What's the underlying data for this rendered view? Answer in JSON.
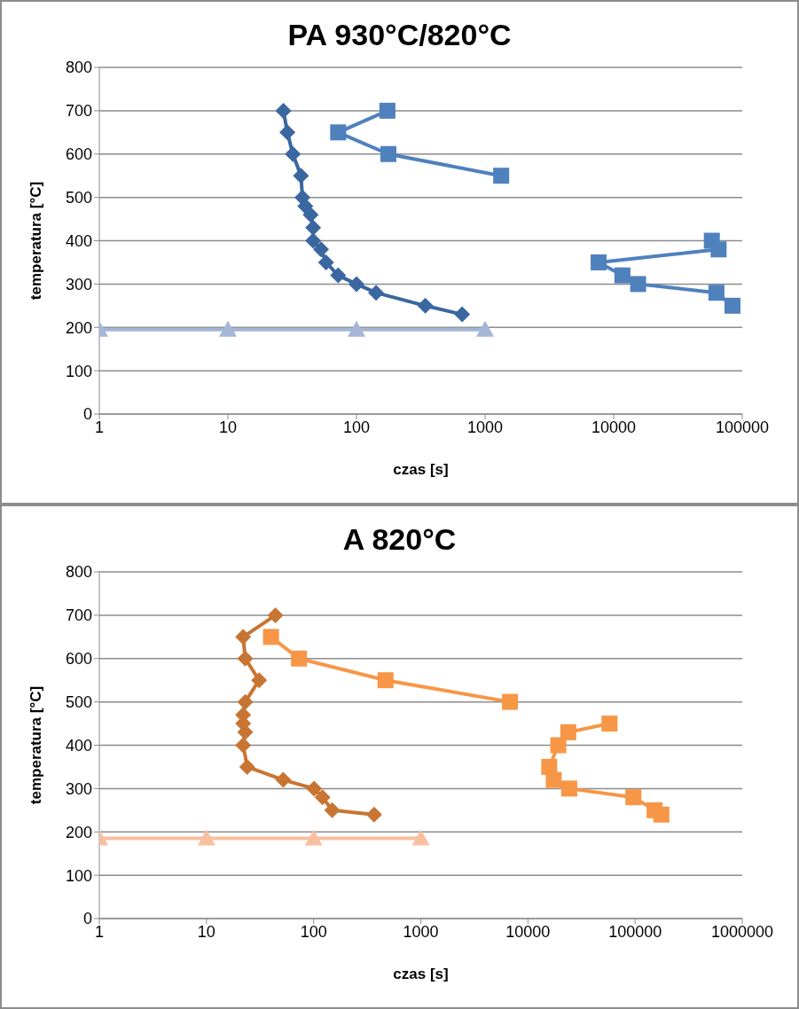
{
  "chart_data": [
    {
      "type": "line",
      "title": "PA 930°C/820°C",
      "xlabel": "czas [s]",
      "ylabel": "temperatura [°C]",
      "log": "x",
      "xlim": [
        1,
        100000
      ],
      "xticks": [
        1,
        10,
        100,
        1000,
        10000,
        100000
      ],
      "ylim": [
        0,
        800
      ],
      "yticks": [
        0,
        100,
        200,
        300,
        400,
        500,
        600,
        700,
        800
      ],
      "grid": "y",
      "line_style": "solid",
      "series": [
        {
          "color": "#3a679f",
          "marker": "diamond",
          "x": [
            27,
            29,
            32,
            37,
            38,
            40,
            44,
            46,
            46,
            53,
            58,
            72,
            100,
            142,
            343,
            663
          ],
          "values": [
            700,
            650,
            600,
            550,
            500,
            480,
            460,
            430,
            400,
            380,
            350,
            320,
            300,
            280,
            250,
            230
          ]
        },
        {
          "color": "#4f81bd",
          "marker": "square",
          "x": [
            174,
            72,
            177,
            1334
          ],
          "values": [
            700,
            650,
            600,
            550
          ]
        },
        {
          "color": "#4f81bd",
          "marker": "square",
          "x": [
            58000,
            65500,
            7640,
            11700,
            15500,
            63000,
            84000
          ],
          "values": [
            400,
            380,
            350,
            320,
            300,
            280,
            250
          ]
        },
        {
          "color": "#a5b6d6",
          "marker": "triangle",
          "x": [
            1,
            10,
            100,
            1000
          ],
          "values": [
            195,
            195,
            195,
            195
          ]
        }
      ]
    },
    {
      "type": "line",
      "title": "A 820°C",
      "xlabel": "czas [s]",
      "ylabel": "temperatura [°C]",
      "log": "x",
      "xlim": [
        1,
        1000000
      ],
      "xticks": [
        1,
        10,
        100,
        1000,
        10000,
        100000,
        1000000
      ],
      "ylim": [
        0,
        800
      ],
      "yticks": [
        0,
        100,
        200,
        300,
        400,
        500,
        600,
        700,
        800
      ],
      "grid": "y",
      "line_style": "solid",
      "series": [
        {
          "color": "#c87533",
          "marker": "diamond",
          "x": [
            44,
            22,
            23,
            31,
            23,
            22,
            22,
            23,
            22,
            24,
            52,
            101,
            121,
            149,
            367
          ],
          "values": [
            700,
            650,
            600,
            550,
            500,
            470,
            450,
            430,
            400,
            350,
            320,
            300,
            280,
            250,
            240
          ]
        },
        {
          "color": "#f79646",
          "marker": "square",
          "x": [
            40,
            73,
            469,
            6800
          ],
          "values": [
            650,
            600,
            550,
            500
          ]
        },
        {
          "color": "#f79646",
          "marker": "square",
          "x": [
            57700,
            23800,
            19200,
            15800,
            17400,
            24300,
            96400,
            152000,
            176000
          ],
          "values": [
            450,
            430,
            400,
            350,
            320,
            300,
            280,
            250,
            240
          ]
        },
        {
          "color": "#f8bfa0",
          "marker": "triangle",
          "x": [
            1,
            10,
            100,
            1000
          ],
          "values": [
            185,
            185,
            185,
            185
          ]
        }
      ]
    }
  ]
}
